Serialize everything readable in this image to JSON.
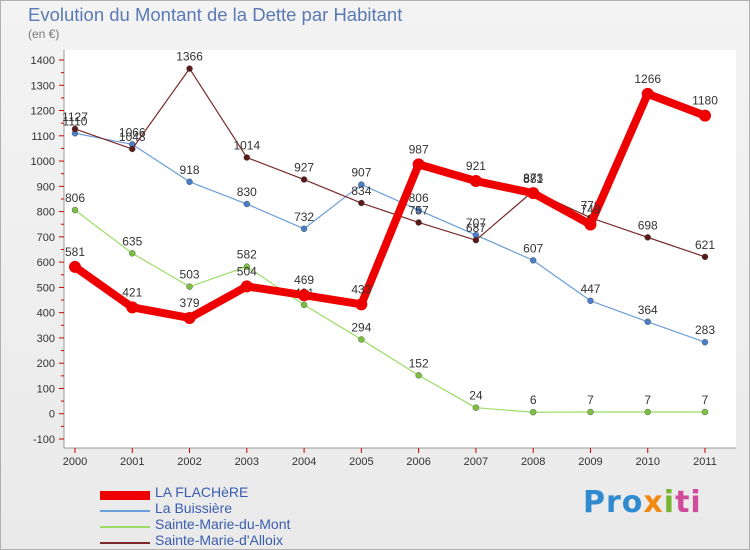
{
  "title": "Evolution du Montant de la Dette par Habitant",
  "subtitle": "(en €)",
  "logo": {
    "text": "Proxiti",
    "parts": [
      "Pro",
      "x",
      "i",
      "ti"
    ]
  },
  "chart_data": {
    "type": "line",
    "title": "Evolution du Montant de la Dette par Habitant",
    "ylabel": "(en €)",
    "xlabel": "",
    "ylim": [
      -100,
      1400
    ],
    "yticks": [
      -100,
      0,
      100,
      200,
      300,
      400,
      500,
      600,
      700,
      800,
      900,
      1000,
      1100,
      1200,
      1300,
      1400
    ],
    "x": [
      "2000",
      "2001",
      "2002",
      "2003",
      "2004",
      "2005",
      "2006",
      "2007",
      "2008",
      "2009",
      "2010",
      "2011"
    ],
    "grid": false,
    "legend": "bottom-left",
    "series": [
      {
        "name": "LA FLACHèRE",
        "color": "#ee0000",
        "values": [
          581,
          421,
          379,
          504,
          469,
          433,
          987,
          921,
          873,
          749,
          1266,
          1180
        ]
      },
      {
        "name": "La Buissière",
        "color": "#6a9ed8",
        "values": [
          1110,
          1066,
          918,
          830,
          732,
          907,
          806,
          707,
          607,
          447,
          364,
          283
        ]
      },
      {
        "name": "Sainte-Marie-du-Mont",
        "color": "#9edc68",
        "values": [
          806,
          635,
          503,
          582,
          431,
          294,
          152,
          24,
          6,
          7,
          7,
          7
        ]
      },
      {
        "name": "Sainte-Marie-d'Alloix",
        "color": "#7a2a2a",
        "values": [
          1127,
          1048,
          1366,
          1014,
          927,
          834,
          757,
          687,
          881,
          776,
          698,
          621
        ]
      }
    ]
  }
}
